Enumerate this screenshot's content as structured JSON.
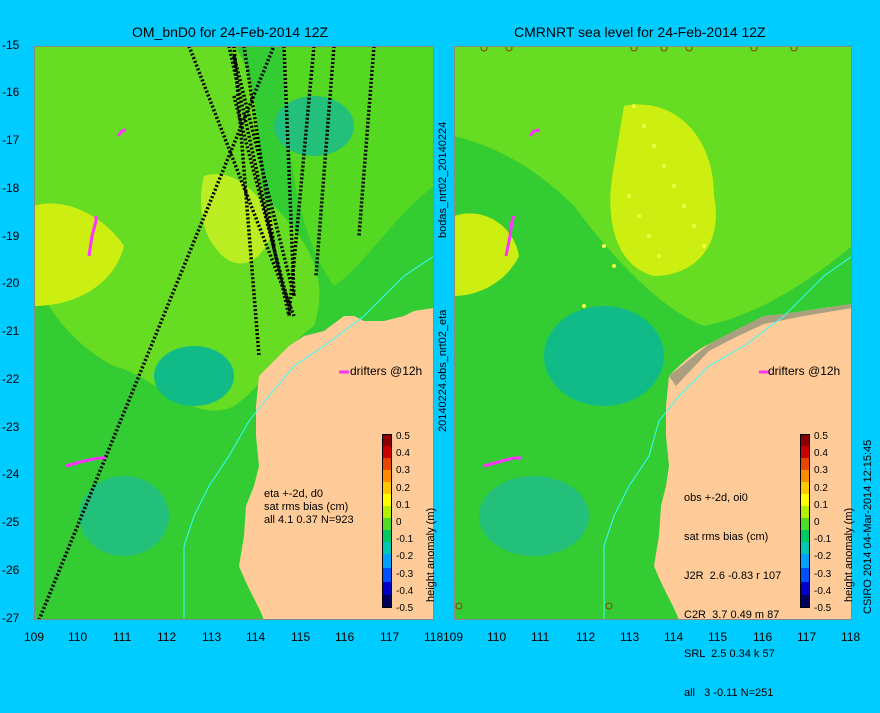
{
  "left_panel": {
    "title": "OM_bnD0 for 24-Feb-2014 12Z",
    "stats": [
      "eta +-2d, d0",
      "sat rms bias (cm)",
      "all 4.1 0.37 N=923"
    ],
    "drifters_label": "drifters @12h"
  },
  "right_panel": {
    "title": "CMRNRT sea level  for 24-Feb-2014 12Z",
    "stats": [
      "obs +-2d, oi0",
      "sat rms bias (cm)",
      "J2R  2.6 -0.83 r 107",
      "C2R  3.7 0.49 m 87",
      "SRL  2.5 0.34 k 57",
      "all   3 -0.11 N=251"
    ],
    "drifters_label": "drifters @12h"
  },
  "y_ticks": [
    "-15",
    "-16",
    "-17",
    "-18",
    "-19",
    "-20",
    "-21",
    "-22",
    "-23",
    "-24",
    "-25",
    "-26",
    "-27"
  ],
  "x_ticks": [
    "109",
    "110",
    "111",
    "112",
    "113",
    "114",
    "115",
    "116",
    "117",
    "118"
  ],
  "x_ticks_right": [
    "109",
    "110",
    "111",
    "112",
    "113",
    "114",
    "115",
    "116",
    "117",
    "118"
  ],
  "colorbar": {
    "label": "height anomaly (m)",
    "ticks": [
      "0.5",
      "0.4",
      "0.3",
      "0.2",
      "0.1",
      "0",
      "-0.1",
      "-0.2",
      "-0.3",
      "-0.4",
      "-0.5"
    ],
    "colors": [
      "#00005a",
      "#0000c8",
      "#0050ff",
      "#00a0ff",
      "#00c8b4",
      "#00c864",
      "#50dc28",
      "#b4f000",
      "#ffff00",
      "#ffc800",
      "#ff8c00",
      "#e64600",
      "#c80000",
      "#8c0000"
    ]
  },
  "side_labels": {
    "middle_top": "bodas_nrt02_20140224",
    "middle_bottom": "20140224.obs_nrt02_eta",
    "right": "CSIRO 2014   04-Mar-2014 12:15:45"
  },
  "colors": {
    "background": "#00ccff",
    "land": "#ffcc99",
    "ocean_base": "#33cc33",
    "ocean_light": "#66dd22",
    "ocean_yellow": "#ccee11",
    "ocean_teal": "#11bb88",
    "track": "#000000",
    "drifter": "#ff33ff"
  }
}
